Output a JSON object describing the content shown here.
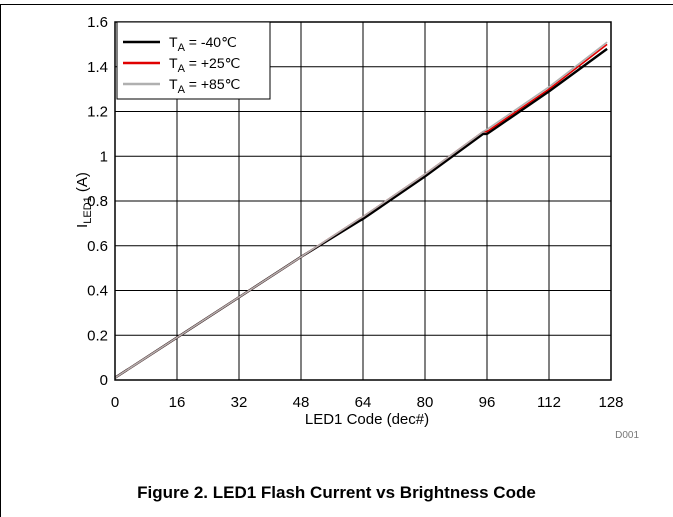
{
  "chart_data": {
    "type": "line",
    "title": "",
    "xlabel": "LED1 Code (dec#)",
    "ylabel": {
      "main": "I",
      "sub": "LED1",
      "unit": " (A)"
    },
    "xlim": [
      0,
      128
    ],
    "ylim": [
      0,
      1.6
    ],
    "xticks": [
      "0",
      "16",
      "32",
      "48",
      "64",
      "80",
      "96",
      "112",
      "128"
    ],
    "yticks": [
      "0",
      "0.2",
      "0.4",
      "0.6",
      "0.8",
      "1",
      "1.2",
      "1.4",
      "1.6"
    ],
    "grid": true,
    "legend_position": "top-left",
    "series": [
      {
        "name": {
          "prefix": "T",
          "sub": "A",
          "suffix": " = -40℃"
        },
        "color": "#000000",
        "x": [
          0,
          16,
          32,
          48,
          63,
          64,
          80,
          95,
          96,
          112,
          127
        ],
        "y": [
          0.01,
          0.19,
          0.37,
          0.55,
          0.71,
          0.72,
          0.91,
          1.1,
          1.1,
          1.29,
          1.48
        ]
      },
      {
        "name": {
          "prefix": "T",
          "sub": "A",
          "suffix": " = +25℃"
        },
        "color": "#e00000",
        "x": [
          0,
          16,
          32,
          48,
          63,
          64,
          80,
          95,
          96,
          112,
          127
        ],
        "y": [
          0.01,
          0.19,
          0.37,
          0.55,
          0.72,
          0.73,
          0.92,
          1.11,
          1.11,
          1.3,
          1.5
        ]
      },
      {
        "name": {
          "prefix": "T",
          "sub": "A",
          "suffix": " = +85℃"
        },
        "color": "#b0b0b0",
        "x": [
          0,
          16,
          32,
          48,
          63,
          64,
          80,
          95,
          96,
          112,
          127
        ],
        "y": [
          0.01,
          0.19,
          0.37,
          0.55,
          0.72,
          0.73,
          0.92,
          1.11,
          1.12,
          1.31,
          1.51
        ]
      }
    ]
  },
  "figure_id": "D001",
  "caption": "Figure 2. LED1 Flash Current vs Brightness Code"
}
